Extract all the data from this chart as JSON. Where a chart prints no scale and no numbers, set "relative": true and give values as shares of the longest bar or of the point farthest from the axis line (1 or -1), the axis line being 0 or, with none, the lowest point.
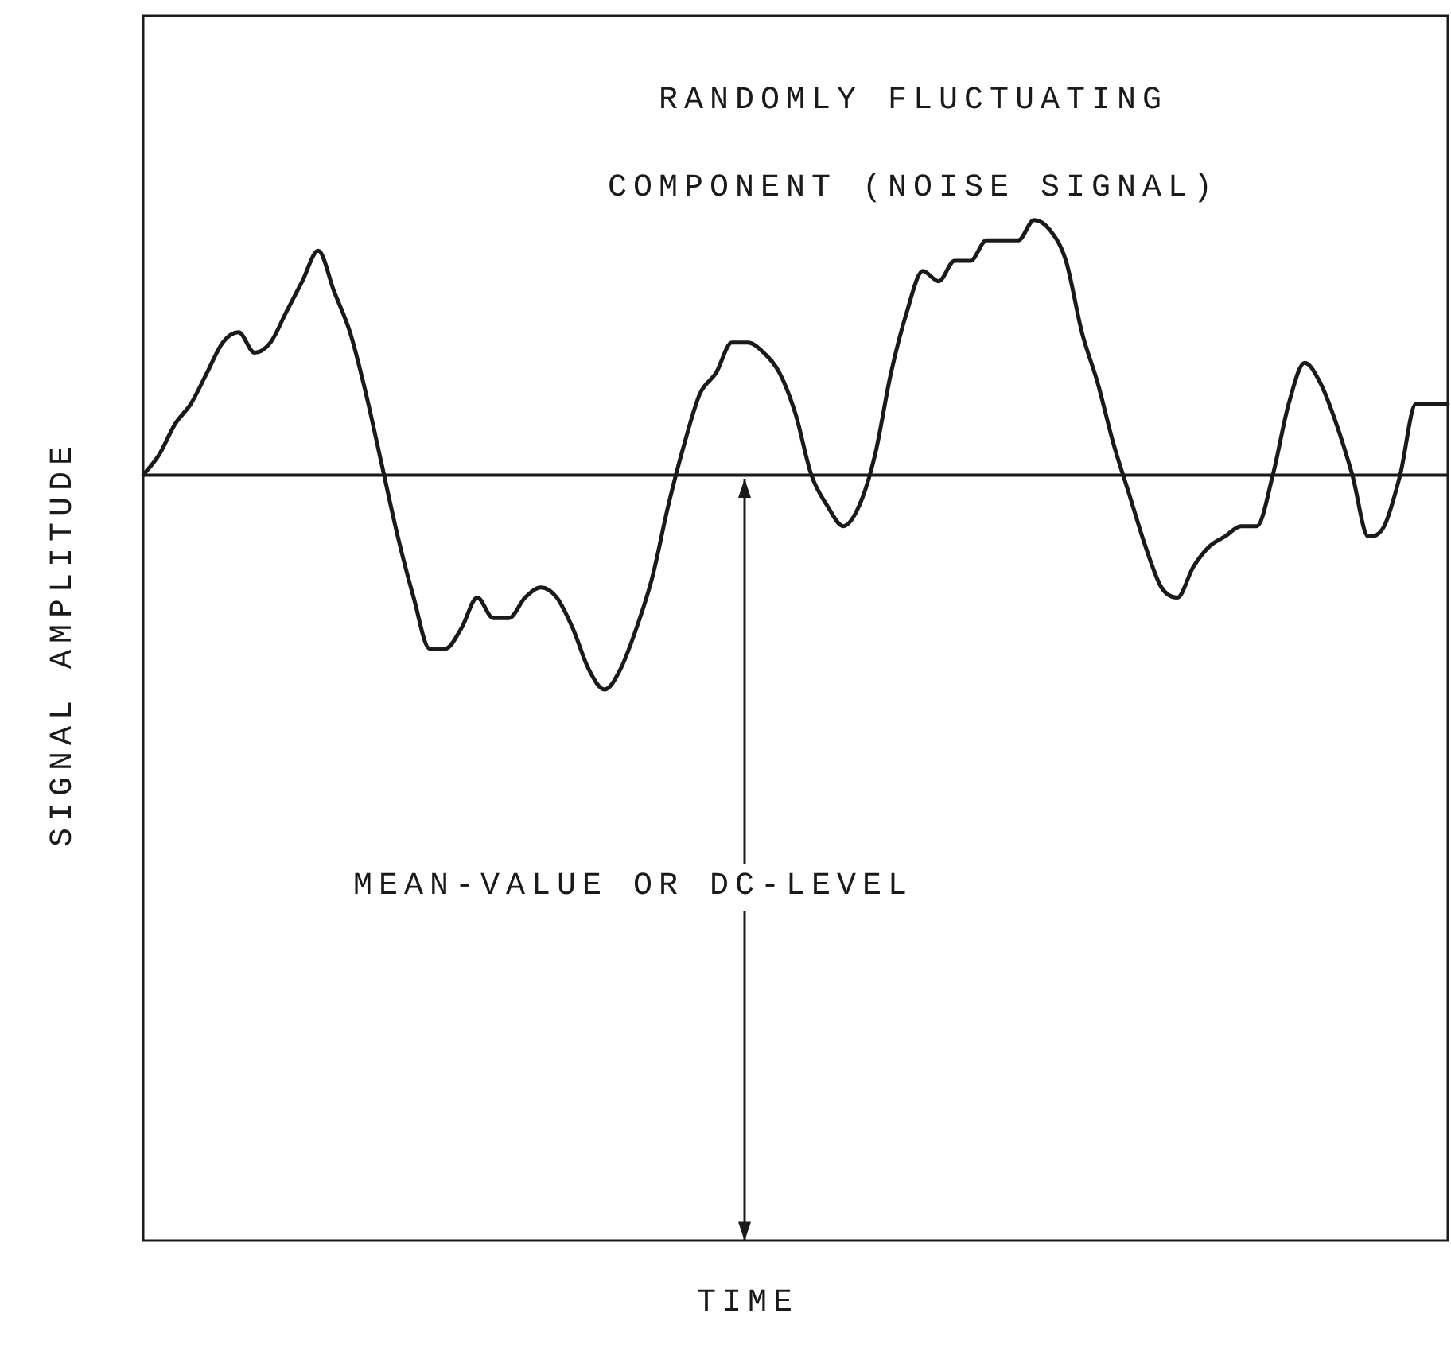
{
  "chart_data": {
    "type": "line",
    "relative": true,
    "xlabel": "TIME",
    "ylabel": "SIGNAL AMPLITUDE",
    "annotations": [
      "RANDOMLY FLUCTUATING COMPONENT (NOISE SIGNAL)",
      "MEAN-VALUE OR DC-LEVEL"
    ],
    "categories": [
      null,
      null,
      null,
      null,
      null,
      null,
      null,
      null,
      null,
      null,
      null,
      null,
      null,
      null,
      null,
      null,
      null,
      null,
      null,
      null,
      null,
      null,
      null,
      null,
      null,
      null,
      null,
      null,
      null,
      null,
      null,
      null,
      null,
      null,
      null,
      null,
      null,
      null,
      null,
      null,
      null,
      null,
      null,
      null,
      null,
      null,
      null,
      null,
      null,
      null,
      null,
      null,
      null,
      null,
      null,
      null,
      null,
      null,
      null,
      null,
      null,
      null,
      null,
      null,
      null,
      null,
      null,
      null,
      null,
      null,
      null,
      null,
      null,
      null,
      null,
      null,
      null,
      null,
      null,
      null,
      null,
      null,
      null
    ],
    "series": [
      {
        "color": "#1a1a1a",
        "values": [
          0.75,
          0.77,
          0.8,
          0.82,
          0.85,
          0.88,
          0.89,
          0.87,
          0.88,
          0.91,
          0.94,
          0.97,
          0.93,
          0.89,
          0.83,
          0.76,
          0.69,
          0.63,
          0.58,
          0.58,
          0.6,
          0.63,
          0.61,
          0.61,
          0.63,
          0.64,
          0.63,
          0.6,
          0.56,
          0.54,
          0.56,
          0.6,
          0.65,
          0.72,
          0.78,
          0.83,
          0.85,
          0.88,
          0.88,
          0.87,
          0.85,
          0.81,
          0.75,
          0.72,
          0.7,
          0.72,
          0.77,
          0.85,
          0.91,
          0.95,
          0.94,
          0.96,
          0.96,
          0.98,
          0.98,
          0.98,
          1.0,
          0.99,
          0.96,
          0.89,
          0.84,
          0.78,
          0.73,
          0.68,
          0.64,
          0.63,
          0.66,
          0.68,
          0.69,
          0.7,
          0.7,
          0.75,
          0.82,
          0.86,
          0.84,
          0.8,
          0.75,
          0.69,
          0.7,
          0.75,
          0.82,
          0.82,
          0.82
        ]
      }
    ],
    "ref_lines": [
      {
        "axis": "y",
        "value": 0.75,
        "color": "#1a1a1a"
      }
    ]
  }
}
